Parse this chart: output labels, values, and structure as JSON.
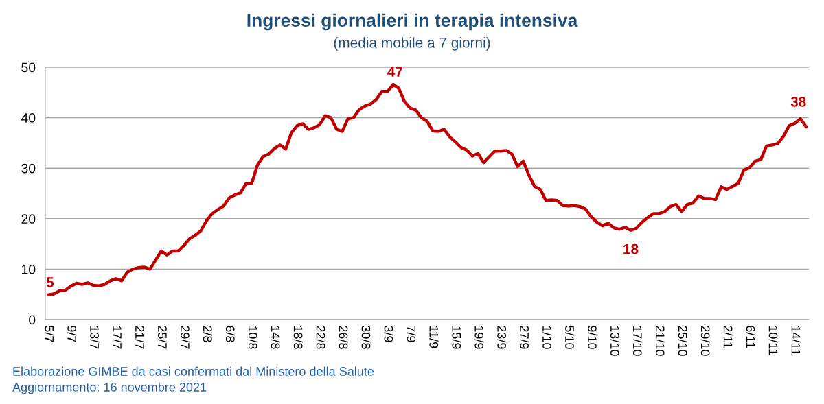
{
  "chart_data": {
    "type": "line",
    "title": "Ingressi giornalieri in terapia intensiva",
    "subtitle": "(media mobile a 7 giorni)",
    "categories": [
      "5/7",
      null,
      null,
      null,
      "9/7",
      null,
      null,
      null,
      "13/7",
      null,
      null,
      null,
      "17/7",
      null,
      null,
      null,
      "21/7",
      null,
      null,
      null,
      "25/7",
      null,
      null,
      null,
      "29/7",
      null,
      null,
      null,
      "2/8",
      null,
      null,
      null,
      "6/8",
      null,
      null,
      null,
      "10/8",
      null,
      null,
      null,
      "14/8",
      null,
      null,
      null,
      "18/8",
      null,
      null,
      null,
      "22/8",
      null,
      null,
      null,
      "26/8",
      null,
      null,
      null,
      "30/8",
      null,
      null,
      null,
      "3/9",
      null,
      null,
      null,
      "7/9",
      null,
      null,
      null,
      "11/9",
      null,
      null,
      null,
      "15/9",
      null,
      null,
      null,
      "19/9",
      null,
      null,
      null,
      "23/9",
      null,
      null,
      null,
      "27/9",
      null,
      null,
      null,
      "1/10",
      null,
      null,
      null,
      "5/10",
      null,
      null,
      null,
      "9/10",
      null,
      null,
      null,
      "13/10",
      null,
      null,
      null,
      "17/10",
      null,
      null,
      null,
      "21/10",
      null,
      null,
      null,
      "25/10",
      null,
      null,
      null,
      "29/10",
      null,
      null,
      null,
      "2/11",
      null,
      null,
      null,
      "6/11",
      null,
      null,
      null,
      "10/11",
      null,
      null,
      null,
      "14/11",
      null,
      null
    ],
    "series": [
      {
        "color": "#c00000",
        "values": [
          4.9,
          5.1,
          5.7,
          5.8,
          6.6,
          7.2,
          7.0,
          7.3,
          6.8,
          6.7,
          7.0,
          7.7,
          8.1,
          7.7,
          9.4,
          10.0,
          10.3,
          10.4,
          10.0,
          11.8,
          13.6,
          12.8,
          13.6,
          13.6,
          14.7,
          16.0,
          16.7,
          17.6,
          19.6,
          21.0,
          21.8,
          22.5,
          24.1,
          24.7,
          25.1,
          27.0,
          27.0,
          30.6,
          32.3,
          32.8,
          33.9,
          34.6,
          33.8,
          37.0,
          38.4,
          38.8,
          37.7,
          38.0,
          38.6,
          40.4,
          40.0,
          37.7,
          37.3,
          39.8,
          40.0,
          41.6,
          42.3,
          42.7,
          43.6,
          45.2,
          45.2,
          46.6,
          45.8,
          43.2,
          41.9,
          41.5,
          40.0,
          39.3,
          37.4,
          37.3,
          37.7,
          36.2,
          35.2,
          34.1,
          33.6,
          32.4,
          32.9,
          31.1,
          32.3,
          33.4,
          33.4,
          33.5,
          32.8,
          30.3,
          31.4,
          28.6,
          26.4,
          25.8,
          23.6,
          23.7,
          23.6,
          22.6,
          22.5,
          22.6,
          22.4,
          21.9,
          20.4,
          19.3,
          18.6,
          19.1,
          18.2,
          17.9,
          18.3,
          17.7,
          18.1,
          19.3,
          20.2,
          21.0,
          21.0,
          21.4,
          22.4,
          22.8,
          21.4,
          22.8,
          23.1,
          24.5,
          24.0,
          24.0,
          23.8,
          26.3,
          25.8,
          26.4,
          27.0,
          29.6,
          30.1,
          31.4,
          31.7,
          34.4,
          34.6,
          34.9,
          36.3,
          38.4,
          38.9,
          39.8,
          38.2
        ],
        "value_labels": [
          "5",
          null,
          null,
          null,
          null,
          null,
          null,
          null,
          null,
          null,
          null,
          null,
          null,
          null,
          null,
          null,
          null,
          null,
          null,
          null,
          null,
          null,
          null,
          null,
          null,
          null,
          null,
          null,
          null,
          null,
          null,
          null,
          null,
          null,
          null,
          null,
          null,
          null,
          null,
          null,
          null,
          null,
          null,
          null,
          null,
          null,
          null,
          null,
          null,
          null,
          null,
          null,
          null,
          null,
          null,
          null,
          null,
          null,
          null,
          null,
          null,
          "47",
          null,
          null,
          null,
          null,
          null,
          null,
          null,
          null,
          null,
          null,
          null,
          null,
          null,
          null,
          null,
          null,
          null,
          null,
          null,
          null,
          null,
          null,
          null,
          null,
          null,
          null,
          null,
          null,
          null,
          null,
          null,
          null,
          null,
          null,
          null,
          null,
          null,
          null,
          null,
          null,
          null,
          "18",
          null,
          null,
          null,
          null,
          null,
          null,
          null,
          null,
          null,
          null,
          null,
          null,
          null,
          null,
          null,
          null,
          null,
          null,
          null,
          null,
          null,
          null,
          null,
          null,
          null,
          null,
          null,
          null,
          null,
          null,
          "38"
        ]
      }
    ],
    "ylim": [
      0,
      50
    ],
    "yticks": [
      0,
      10,
      20,
      30,
      40,
      50
    ],
    "grid": "y",
    "legend": false,
    "marker": "none",
    "line_style": "solid",
    "annotations": [
      "Elaborazione GIMBE da casi confermati dal Ministero della Salute",
      "Aggiornamento: 16 novembre 2021"
    ]
  }
}
